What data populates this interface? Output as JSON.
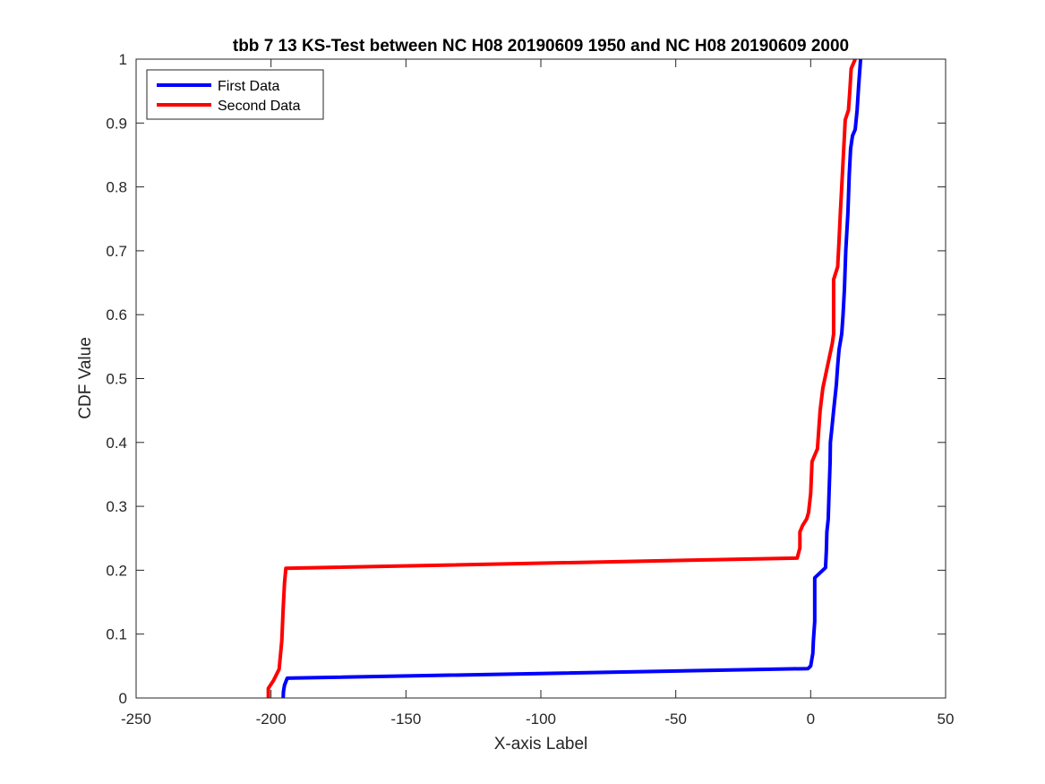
{
  "chart_data": {
    "type": "line",
    "title": "tbb 7 13 KS-Test between NC H08 20190609 1950 and NC H08 20190609 2000",
    "xlabel": "X-axis Label",
    "ylabel": "CDF Value",
    "xlim": [
      -250,
      50
    ],
    "ylim": [
      0,
      1
    ],
    "xticks": [
      -250,
      -200,
      -150,
      -100,
      -50,
      0,
      50
    ],
    "xtick_labels": [
      "-250",
      "-200",
      "-150",
      "-100",
      "-50",
      "0",
      "50"
    ],
    "yticks": [
      0,
      0.1,
      0.2,
      0.3,
      0.4,
      0.5,
      0.6,
      0.7,
      0.8,
      0.9,
      1
    ],
    "ytick_labels": [
      "0",
      "0.1",
      "0.2",
      "0.3",
      "0.4",
      "0.5",
      "0.6",
      "0.7",
      "0.8",
      "0.9",
      "1"
    ],
    "grid": false,
    "legend_position": "top-left",
    "series": [
      {
        "name": "First Data",
        "color": "#0000ff",
        "points": [
          [
            -195.5,
            0
          ],
          [
            -195.4,
            0.01
          ],
          [
            -195.0,
            0.02
          ],
          [
            -194.0,
            0.031
          ],
          [
            -1.0,
            0.046
          ],
          [
            0.0,
            0.05
          ],
          [
            0.8,
            0.07
          ],
          [
            1.0,
            0.09
          ],
          [
            1.5,
            0.12
          ],
          [
            1.5,
            0.188
          ],
          [
            2.5,
            0.192
          ],
          [
            5.5,
            0.204
          ],
          [
            5.8,
            0.23
          ],
          [
            6.0,
            0.26
          ],
          [
            6.5,
            0.28
          ],
          [
            6.8,
            0.32
          ],
          [
            7.2,
            0.37
          ],
          [
            7.3,
            0.4
          ],
          [
            7.8,
            0.42
          ],
          [
            8.5,
            0.45
          ],
          [
            9.5,
            0.49
          ],
          [
            10.0,
            0.52
          ],
          [
            10.5,
            0.545
          ],
          [
            11.5,
            0.57
          ],
          [
            12.0,
            0.6
          ],
          [
            12.5,
            0.64
          ],
          [
            13.0,
            0.7
          ],
          [
            13.8,
            0.76
          ],
          [
            14.3,
            0.82
          ],
          [
            14.8,
            0.86
          ],
          [
            15.5,
            0.88
          ],
          [
            16.5,
            0.89
          ],
          [
            17.2,
            0.92
          ],
          [
            17.8,
            0.96
          ],
          [
            18.5,
            1.0
          ]
        ]
      },
      {
        "name": "Second Data",
        "color": "#ff0000",
        "points": [
          [
            -201.0,
            0
          ],
          [
            -201.0,
            0.015
          ],
          [
            -199.0,
            0.028
          ],
          [
            -197.0,
            0.045
          ],
          [
            -196.0,
            0.09
          ],
          [
            -195.5,
            0.14
          ],
          [
            -195.0,
            0.18
          ],
          [
            -194.5,
            0.203
          ],
          [
            -5.0,
            0.219
          ],
          [
            -4.0,
            0.235
          ],
          [
            -4.0,
            0.26
          ],
          [
            -3.0,
            0.27
          ],
          [
            -1.5,
            0.28
          ],
          [
            -0.8,
            0.29
          ],
          [
            0.0,
            0.32
          ],
          [
            0.5,
            0.37
          ],
          [
            2.0,
            0.385
          ],
          [
            2.5,
            0.39
          ],
          [
            3.0,
            0.42
          ],
          [
            3.5,
            0.45
          ],
          [
            4.5,
            0.485
          ],
          [
            5.5,
            0.505
          ],
          [
            6.5,
            0.525
          ],
          [
            8.0,
            0.555
          ],
          [
            8.5,
            0.57
          ],
          [
            8.5,
            0.655
          ],
          [
            10.0,
            0.675
          ],
          [
            10.5,
            0.715
          ],
          [
            11.0,
            0.76
          ],
          [
            11.5,
            0.8
          ],
          [
            12.0,
            0.84
          ],
          [
            12.5,
            0.88
          ],
          [
            12.8,
            0.905
          ],
          [
            14.0,
            0.92
          ],
          [
            14.5,
            0.95
          ],
          [
            15.0,
            0.985
          ],
          [
            16.0,
            0.995
          ],
          [
            16.5,
            1.0
          ]
        ]
      }
    ]
  }
}
